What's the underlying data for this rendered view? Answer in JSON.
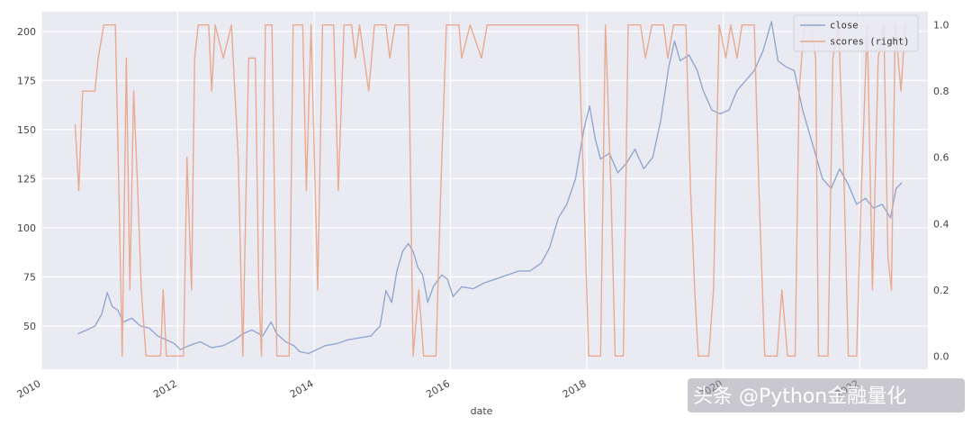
{
  "chart_data": {
    "type": "line",
    "title": "",
    "xlabel": "date",
    "ylabel": "",
    "ylabel_right": "",
    "x_ticks": [
      "2010",
      "2012",
      "2014",
      "2016",
      "2018",
      "2020",
      "2022"
    ],
    "xlim": [
      "2010-01-01",
      "2023-01-01"
    ],
    "ylim_left": [
      28,
      210
    ],
    "ylim_right": [
      -0.04,
      1.04
    ],
    "y_ticks_left": [
      50,
      75,
      100,
      125,
      150,
      175,
      200
    ],
    "y_ticks_right": [
      0.0,
      0.2,
      0.4,
      0.6,
      0.8,
      1.0
    ],
    "grid": true,
    "legend_position": "top-right",
    "colors": {
      "background": "#eaeaf2",
      "grid": "#ffffff",
      "close": "#8da3cc",
      "scores": "#e8a68a",
      "watermark_bg": "#9a9aa6"
    },
    "series": [
      {
        "name": "close",
        "axis": "left",
        "points": [
          [
            "2010-07-15",
            46
          ],
          [
            "2010-09-01",
            48
          ],
          [
            "2010-10-15",
            50
          ],
          [
            "2010-11-20",
            56
          ],
          [
            "2010-12-20",
            67
          ],
          [
            "2011-01-15",
            60
          ],
          [
            "2011-02-15",
            58
          ],
          [
            "2011-03-15",
            52
          ],
          [
            "2011-05-01",
            54
          ],
          [
            "2011-06-15",
            50
          ],
          [
            "2011-08-01",
            49
          ],
          [
            "2011-09-15",
            45
          ],
          [
            "2011-11-01",
            43
          ],
          [
            "2011-12-15",
            41
          ],
          [
            "2012-01-15",
            38
          ],
          [
            "2012-03-01",
            40
          ],
          [
            "2012-05-01",
            42
          ],
          [
            "2012-07-01",
            39
          ],
          [
            "2012-09-01",
            40
          ],
          [
            "2012-11-01",
            43
          ],
          [
            "2012-12-15",
            46
          ],
          [
            "2013-02-01",
            48
          ],
          [
            "2013-04-01",
            45
          ],
          [
            "2013-05-15",
            52
          ],
          [
            "2013-06-15",
            46
          ],
          [
            "2013-08-01",
            42
          ],
          [
            "2013-09-15",
            40
          ],
          [
            "2013-10-15",
            37
          ],
          [
            "2013-12-01",
            36
          ],
          [
            "2014-01-15",
            38
          ],
          [
            "2014-03-01",
            40
          ],
          [
            "2014-05-01",
            41
          ],
          [
            "2014-07-01",
            43
          ],
          [
            "2014-09-01",
            44
          ],
          [
            "2014-11-01",
            45
          ],
          [
            "2014-12-20",
            50
          ],
          [
            "2015-01-20",
            68
          ],
          [
            "2015-02-20",
            62
          ],
          [
            "2015-03-20",
            78
          ],
          [
            "2015-04-20",
            88
          ],
          [
            "2015-05-20",
            92
          ],
          [
            "2015-06-15",
            88
          ],
          [
            "2015-07-10",
            80
          ],
          [
            "2015-08-05",
            76
          ],
          [
            "2015-09-01",
            62
          ],
          [
            "2015-10-01",
            70
          ],
          [
            "2015-11-15",
            76
          ],
          [
            "2015-12-15",
            74
          ],
          [
            "2016-01-15",
            65
          ],
          [
            "2016-03-01",
            70
          ],
          [
            "2016-05-01",
            69
          ],
          [
            "2016-07-01",
            72
          ],
          [
            "2016-09-01",
            74
          ],
          [
            "2016-11-01",
            76
          ],
          [
            "2017-01-01",
            78
          ],
          [
            "2017-03-01",
            78
          ],
          [
            "2017-05-01",
            82
          ],
          [
            "2017-06-15",
            90
          ],
          [
            "2017-08-01",
            105
          ],
          [
            "2017-09-15",
            112
          ],
          [
            "2017-11-01",
            125
          ],
          [
            "2017-12-15",
            150
          ],
          [
            "2018-01-15",
            162
          ],
          [
            "2018-02-15",
            145
          ],
          [
            "2018-03-15",
            135
          ],
          [
            "2018-05-01",
            138
          ],
          [
            "2018-06-15",
            128
          ],
          [
            "2018-08-01",
            133
          ],
          [
            "2018-09-15",
            140
          ],
          [
            "2018-11-01",
            130
          ],
          [
            "2018-12-20",
            136
          ],
          [
            "2019-02-01",
            155
          ],
          [
            "2019-03-15",
            182
          ],
          [
            "2019-04-15",
            195
          ],
          [
            "2019-05-15",
            185
          ],
          [
            "2019-07-01",
            188
          ],
          [
            "2019-08-15",
            180
          ],
          [
            "2019-09-15",
            170
          ],
          [
            "2019-11-01",
            160
          ],
          [
            "2019-12-15",
            158
          ],
          [
            "2020-02-01",
            160
          ],
          [
            "2020-03-15",
            170
          ],
          [
            "2020-05-01",
            175
          ],
          [
            "2020-06-15",
            180
          ],
          [
            "2020-08-01",
            190
          ],
          [
            "2020-09-15",
            205
          ],
          [
            "2020-10-20",
            185
          ],
          [
            "2020-12-01",
            182
          ],
          [
            "2021-01-15",
            180
          ],
          [
            "2021-03-01",
            160
          ],
          [
            "2021-05-01",
            140
          ],
          [
            "2021-06-15",
            125
          ],
          [
            "2021-08-01",
            120
          ],
          [
            "2021-09-15",
            130
          ],
          [
            "2021-11-01",
            122
          ],
          [
            "2021-12-15",
            112
          ],
          [
            "2022-02-01",
            115
          ],
          [
            "2022-03-15",
            110
          ],
          [
            "2022-05-01",
            112
          ],
          [
            "2022-06-15",
            105
          ],
          [
            "2022-07-15",
            120
          ],
          [
            "2022-08-15",
            123
          ]
        ]
      },
      {
        "name": "scores (right)",
        "axis": "right",
        "points": [
          [
            "2010-07-01",
            0.7
          ],
          [
            "2010-07-20",
            0.5
          ],
          [
            "2010-08-10",
            0.8
          ],
          [
            "2010-10-15",
            0.8
          ],
          [
            "2010-11-01",
            0.9
          ],
          [
            "2010-12-01",
            1.0
          ],
          [
            "2011-02-01",
            1.0
          ],
          [
            "2011-02-20",
            0.5
          ],
          [
            "2011-03-10",
            0.0
          ],
          [
            "2011-04-01",
            0.9
          ],
          [
            "2011-04-20",
            0.2
          ],
          [
            "2011-05-10",
            0.8
          ],
          [
            "2011-06-01",
            0.5
          ],
          [
            "2011-06-20",
            0.2
          ],
          [
            "2011-07-15",
            0.0
          ],
          [
            "2011-10-01",
            0.0
          ],
          [
            "2011-10-15",
            0.2
          ],
          [
            "2011-11-01",
            0.0
          ],
          [
            "2012-02-01",
            0.0
          ],
          [
            "2012-02-20",
            0.6
          ],
          [
            "2012-03-15",
            0.2
          ],
          [
            "2012-04-01",
            0.9
          ],
          [
            "2012-04-20",
            1.0
          ],
          [
            "2012-06-15",
            1.0
          ],
          [
            "2012-07-01",
            0.8
          ],
          [
            "2012-07-20",
            1.0
          ],
          [
            "2012-09-01",
            0.9
          ],
          [
            "2012-10-15",
            1.0
          ],
          [
            "2012-11-20",
            0.6
          ],
          [
            "2012-12-15",
            0.0
          ],
          [
            "2013-01-15",
            0.9
          ],
          [
            "2013-02-20",
            0.9
          ],
          [
            "2013-03-10",
            0.2
          ],
          [
            "2013-03-25",
            0.0
          ],
          [
            "2013-04-15",
            1.0
          ],
          [
            "2013-05-20",
            1.0
          ],
          [
            "2013-06-15",
            0.0
          ],
          [
            "2013-08-20",
            0.0
          ],
          [
            "2013-09-10",
            1.0
          ],
          [
            "2013-11-01",
            1.0
          ],
          [
            "2013-11-20",
            0.5
          ],
          [
            "2013-12-15",
            1.0
          ],
          [
            "2014-01-20",
            0.2
          ],
          [
            "2014-02-15",
            1.0
          ],
          [
            "2014-04-15",
            1.0
          ],
          [
            "2014-05-10",
            0.5
          ],
          [
            "2014-06-10",
            1.0
          ],
          [
            "2014-07-20",
            1.0
          ],
          [
            "2014-08-10",
            0.9
          ],
          [
            "2014-09-01",
            1.0
          ],
          [
            "2014-10-20",
            0.8
          ],
          [
            "2014-11-20",
            1.0
          ],
          [
            "2015-01-20",
            1.0
          ],
          [
            "2015-02-10",
            0.9
          ],
          [
            "2015-03-10",
            1.0
          ],
          [
            "2015-05-20",
            1.0
          ],
          [
            "2015-06-15",
            0.0
          ],
          [
            "2015-07-15",
            0.2
          ],
          [
            "2015-08-10",
            0.0
          ],
          [
            "2015-10-15",
            0.0
          ],
          [
            "2015-11-10",
            0.5
          ],
          [
            "2015-12-10",
            1.0
          ],
          [
            "2016-02-15",
            1.0
          ],
          [
            "2016-03-01",
            0.9
          ],
          [
            "2016-04-15",
            1.0
          ],
          [
            "2016-06-15",
            0.9
          ],
          [
            "2016-07-15",
            1.0
          ],
          [
            "2017-11-15",
            1.0
          ],
          [
            "2017-12-15",
            0.5
          ],
          [
            "2018-01-10",
            0.0
          ],
          [
            "2018-03-15",
            0.0
          ],
          [
            "2018-04-10",
            1.0
          ],
          [
            "2018-05-10",
            0.5
          ],
          [
            "2018-06-01",
            0.0
          ],
          [
            "2018-07-15",
            0.0
          ],
          [
            "2018-08-10",
            1.0
          ],
          [
            "2018-10-15",
            1.0
          ],
          [
            "2018-11-10",
            0.9
          ],
          [
            "2018-12-15",
            1.0
          ],
          [
            "2019-02-15",
            1.0
          ],
          [
            "2019-03-10",
            0.9
          ],
          [
            "2019-04-10",
            1.0
          ],
          [
            "2019-06-15",
            1.0
          ],
          [
            "2019-07-10",
            0.5
          ],
          [
            "2019-08-01",
            0.2
          ],
          [
            "2019-08-20",
            0.0
          ],
          [
            "2019-10-15",
            0.0
          ],
          [
            "2019-11-10",
            0.2
          ],
          [
            "2019-12-10",
            1.0
          ],
          [
            "2020-01-15",
            0.9
          ],
          [
            "2020-02-10",
            1.0
          ],
          [
            "2020-03-15",
            0.9
          ],
          [
            "2020-04-10",
            1.0
          ],
          [
            "2020-06-15",
            1.0
          ],
          [
            "2020-07-10",
            0.5
          ],
          [
            "2020-08-10",
            0.0
          ],
          [
            "2020-10-15",
            0.0
          ],
          [
            "2020-11-10",
            0.2
          ],
          [
            "2020-12-10",
            0.0
          ],
          [
            "2021-01-20",
            0.0
          ],
          [
            "2021-02-10",
            0.8
          ],
          [
            "2021-03-10",
            1.0
          ],
          [
            "2021-04-15",
            1.0
          ],
          [
            "2021-05-10",
            0.9
          ],
          [
            "2021-05-25",
            0.0
          ],
          [
            "2021-07-15",
            0.0
          ],
          [
            "2021-08-10",
            0.9
          ],
          [
            "2021-09-10",
            1.0
          ],
          [
            "2021-10-10",
            0.5
          ],
          [
            "2021-11-01",
            0.0
          ],
          [
            "2021-12-15",
            0.0
          ],
          [
            "2022-01-10",
            0.5
          ],
          [
            "2022-02-10",
            1.0
          ],
          [
            "2022-03-10",
            0.2
          ],
          [
            "2022-04-10",
            0.9
          ],
          [
            "2022-05-10",
            1.0
          ],
          [
            "2022-06-01",
            0.3
          ],
          [
            "2022-06-20",
            0.2
          ],
          [
            "2022-07-10",
            1.0
          ],
          [
            "2022-08-10",
            0.8
          ],
          [
            "2022-09-01",
            1.0
          ]
        ]
      }
    ]
  },
  "watermark": {
    "text": "头条 @Python金融量化"
  }
}
